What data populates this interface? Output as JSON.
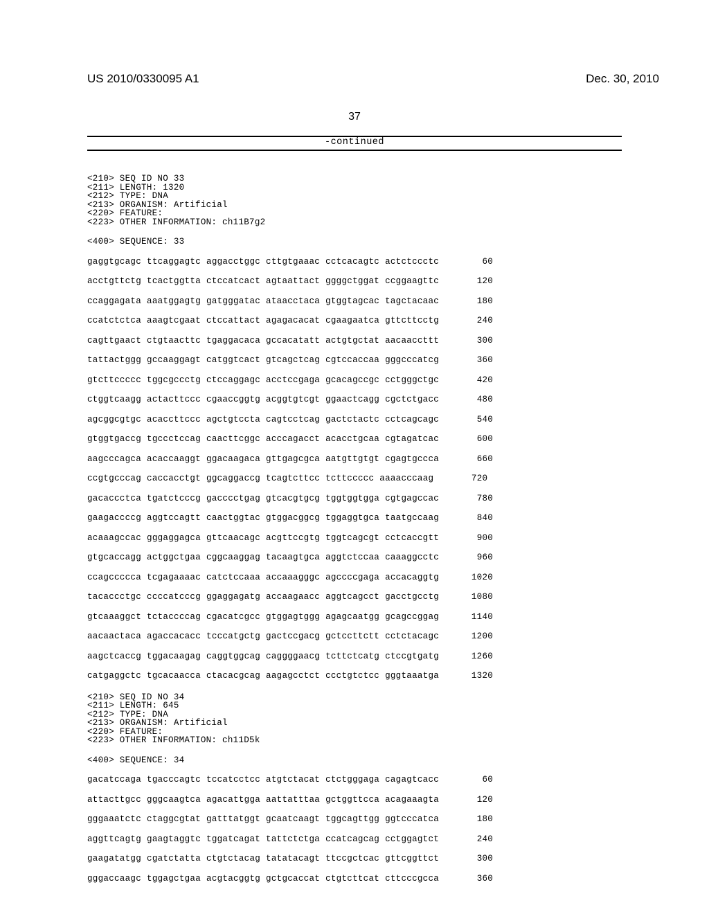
{
  "header": {
    "pub_number": "US 2010/0330095 A1",
    "pub_date": "Dec. 30, 2010",
    "page_number": "37"
  },
  "continued_label": "-continued",
  "sequences": [
    {
      "headers": [
        "<210> SEQ ID NO 33",
        "<211> LENGTH: 1320",
        "<212> TYPE: DNA",
        "<213> ORGANISM: Artificial",
        "<220> FEATURE:",
        "<223> OTHER INFORMATION: ch11B7g2"
      ],
      "tag": "<400> SEQUENCE: 33",
      "rows": [
        {
          "blocks": [
            "gaggtgcagc",
            "ttcaggagtc",
            "aggacctggc",
            "cttgtgaaac",
            "cctcacagtc",
            "actctccctc"
          ],
          "pos": 60
        },
        {
          "blocks": [
            "acctgttctg",
            "tcactggtta",
            "ctccatcact",
            "agtaattact",
            "ggggctggat",
            "ccggaagttc"
          ],
          "pos": 120
        },
        {
          "blocks": [
            "ccaggagata",
            "aaatggagtg",
            "gatgggatac",
            "ataacctaca",
            "gtggtagcac",
            "tagctacaac"
          ],
          "pos": 180
        },
        {
          "blocks": [
            "ccatctctca",
            "aaagtcgaat",
            "ctccattact",
            "agagacacat",
            "cgaagaatca",
            "gttcttcctg"
          ],
          "pos": 240
        },
        {
          "blocks": [
            "cagttgaact",
            "ctgtaacttc",
            "tgaggacaca",
            "gccacatatt",
            "actgtgctat",
            "aacaaccttt"
          ],
          "pos": 300
        },
        {
          "blocks": [
            "tattactggg",
            "gccaaggagt",
            "catggtcact",
            "gtcagctcag",
            "cgtccaccaa",
            "gggcccatcg"
          ],
          "pos": 360
        },
        {
          "blocks": [
            "gtcttccccc",
            "tggcgccctg",
            "ctccaggagc",
            "acctccgaga",
            "gcacagccgc",
            "cctgggctgc"
          ],
          "pos": 420
        },
        {
          "blocks": [
            "ctggtcaagg",
            "actacttccc",
            "cgaaccggtg",
            "acggtgtcgt",
            "ggaactcagg",
            "cgctctgacc"
          ],
          "pos": 480
        },
        {
          "blocks": [
            "agcggcgtgc",
            "acaccttccc",
            "agctgtccta",
            "cagtcctcag",
            "gactctactc",
            "cctcagcagc"
          ],
          "pos": 540
        },
        {
          "blocks": [
            "gtggtgaccg",
            "tgccctccag",
            "caacttcggc",
            "acccagacct",
            "acacctgcaa",
            "cgtagatcac"
          ],
          "pos": 600
        },
        {
          "blocks": [
            "aagcccagca",
            "acaccaaggt",
            "ggacaagaca",
            "gttgagcgca",
            "aatgttgtgt",
            "cgagtgccca"
          ],
          "pos": 660
        },
        {
          "blocks": [
            "ccgtgcccag",
            "caccacctgt",
            "ggcaggaccg",
            "tcagtcttcc",
            "tcttccccc",
            "aaaacccaag"
          ],
          "pos": 720
        },
        {
          "blocks": [
            "gacaccctca",
            "tgatctcccg",
            "gacccctgag",
            "gtcacgtgcg",
            "tggtggtgga",
            "cgtgagccac"
          ],
          "pos": 780
        },
        {
          "blocks": [
            "gaagaccccg",
            "aggtccagtt",
            "caactggtac",
            "gtggacggcg",
            "tggaggtgca",
            "taatgccaag"
          ],
          "pos": 840
        },
        {
          "blocks": [
            "acaaagccac",
            "gggaggagca",
            "gttcaacagc",
            "acgttccgtg",
            "tggtcagcgt",
            "cctcaccgtt"
          ],
          "pos": 900
        },
        {
          "blocks": [
            "gtgcaccagg",
            "actggctgaa",
            "cggcaaggag",
            "tacaagtgca",
            "aggtctccaa",
            "caaaggcctc"
          ],
          "pos": 960
        },
        {
          "blocks": [
            "ccagccccca",
            "tcgagaaaac",
            "catctccaaa",
            "accaaagggc",
            "agccccgaga",
            "accacaggtg"
          ],
          "pos": 1020
        },
        {
          "blocks": [
            "tacaccctgc",
            "ccccatcccg",
            "ggaggagatg",
            "accaagaacc",
            "aggtcagcct",
            "gacctgcctg"
          ],
          "pos": 1080
        },
        {
          "blocks": [
            "gtcaaaggct",
            "tctaccccag",
            "cgacatcgcc",
            "gtggagtggg",
            "agagcaatgg",
            "gcagccggag"
          ],
          "pos": 1140
        },
        {
          "blocks": [
            "aacaactaca",
            "agaccacacc",
            "tcccatgctg",
            "gactccgacg",
            "gctccttctt",
            "cctctacagc"
          ],
          "pos": 1200
        },
        {
          "blocks": [
            "aagctcaccg",
            "tggacaagag",
            "caggtggcag",
            "caggggaacg",
            "tcttctcatg",
            "ctccgtgatg"
          ],
          "pos": 1260
        },
        {
          "blocks": [
            "catgaggctc",
            "tgcacaacca",
            "ctacacgcag",
            "aagagcctct",
            "ccctgtctcc",
            "gggtaaatga"
          ],
          "pos": 1320
        }
      ]
    },
    {
      "headers": [
        "<210> SEQ ID NO 34",
        "<211> LENGTH: 645",
        "<212> TYPE: DNA",
        "<213> ORGANISM: Artificial",
        "<220> FEATURE:",
        "<223> OTHER INFORMATION: ch11D5k"
      ],
      "tag": "<400> SEQUENCE: 34",
      "rows": [
        {
          "blocks": [
            "gacatccaga",
            "tgacccagtc",
            "tccatcctcc",
            "atgtctacat",
            "ctctgggaga",
            "cagagtcacc"
          ],
          "pos": 60
        },
        {
          "blocks": [
            "attacttgcc",
            "gggcaagtca",
            "agacattgga",
            "aattatttaa",
            "gctggttcca",
            "acagaaagta"
          ],
          "pos": 120
        },
        {
          "blocks": [
            "gggaaatctc",
            "ctaggcgtat",
            "gatttatggt",
            "gcaatcaagt",
            "tggcagttgg",
            "ggtcccatca"
          ],
          "pos": 180
        },
        {
          "blocks": [
            "aggttcagtg",
            "gaagtaggtc",
            "tggatcagat",
            "tattctctga",
            "ccatcagcag",
            "cctggagtct"
          ],
          "pos": 240
        },
        {
          "blocks": [
            "gaagatatgg",
            "cgatctatta",
            "ctgtctacag",
            "tatatacagt",
            "ttccgctcac",
            "gttcggttct"
          ],
          "pos": 300
        },
        {
          "blocks": [
            "gggaccaagc",
            "tggagctgaa",
            "acgtacggtg",
            "gctgcaccat",
            "ctgtcttcat",
            "cttcccgcca"
          ],
          "pos": 360
        }
      ]
    }
  ]
}
